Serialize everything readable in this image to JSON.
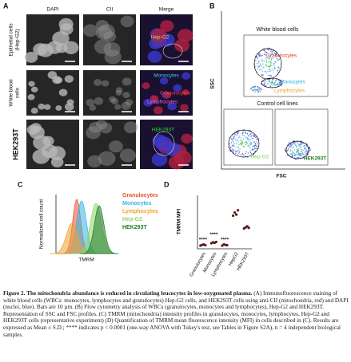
{
  "panel_a": {
    "label": "A",
    "columns": [
      "DAPI",
      "CII",
      "Merge"
    ],
    "rows": [
      [
        "Epithelial cells",
        "(Hep-G2)"
      ],
      [
        "White blood",
        "cells"
      ],
      [
        "HEK293T"
      ]
    ],
    "overlays": [
      "Hep-G2",
      "Monocytes",
      "Granulocytes",
      "Lymphocytes",
      "HEK293T"
    ]
  },
  "panel_b": {
    "label": "B",
    "y_axis": "SSC",
    "x_axis": "FSC",
    "top_title": "White blood cells",
    "top_populations": [
      "Granulocytes",
      "Monocytes",
      "Lymphocytes"
    ],
    "bottom_title": "Control cell lines",
    "bottom_populations": [
      "Hep-G2",
      "HEK293T"
    ]
  },
  "panel_c": {
    "label": "C",
    "y_axis": "Normalized cell count",
    "x_axis": "TMRM",
    "legend": [
      {
        "name": "Granulocytes",
        "color": "#e8502e"
      },
      {
        "name": "Monocytes",
        "color": "#35b4e6"
      },
      {
        "name": "Lymphocytes",
        "color": "#f0a030"
      },
      {
        "name": "Hep-G2",
        "color": "#8fd46a"
      },
      {
        "name": "HEK293T",
        "color": "#1f7a2a"
      }
    ]
  },
  "chart_data": {
    "type": "dot",
    "label": "D",
    "y_label": "TMRM MFI",
    "categories": [
      "Granulocytes",
      "Monocytes",
      "Lymphocytes",
      "HepG2",
      "HEK293T"
    ],
    "values": [
      [
        150,
        180,
        200,
        170
      ],
      [
        260,
        300,
        280,
        320
      ],
      [
        150,
        200,
        180,
        170
      ],
      [
        1550,
        1700,
        1600,
        1800
      ],
      [
        950,
        1000,
        1050,
        980
      ]
    ],
    "color": "#5a1a1a",
    "ylim": [
      0,
      2500
    ],
    "significance": [
      "****",
      "****",
      "****"
    ]
  },
  "caption": {
    "label": "Figure 2.",
    "title": "The mitochondria abundance is reduced in circulating leucocytes in low-oxygenated plasma.",
    "body": "(A) Immunofluorescence staining of white blood cells (WBCs: monocytes, lymphocytes and granulocytes) Hep-G2 cells, and HEK293T cells using anti-CII (mitochondria, red) and DAPI (nuclei, blue). Bars are 10 µm. (B) Flow cytometry analysis of WBCs (granulocytes, monocytes and lymphocytes), Hep-G2 and HEK293T. Representation of SSC and FSC profiles. (C) TMRM (mitochondria) intensity profiles in granulocytes, monocytes, lymphocytes, Hep-G2 and HEK293T cells (representative experiment) (D) Quantification of TMRM mean fluorescence intensity (MFI) in cells described in (C). Results are expressed as Mean ± S.D.; **** indicates p < 0.0001 (one-way ANOVA with Tukey's test, see Tables in Figure S2A), n = 4 independent biological samples."
  }
}
